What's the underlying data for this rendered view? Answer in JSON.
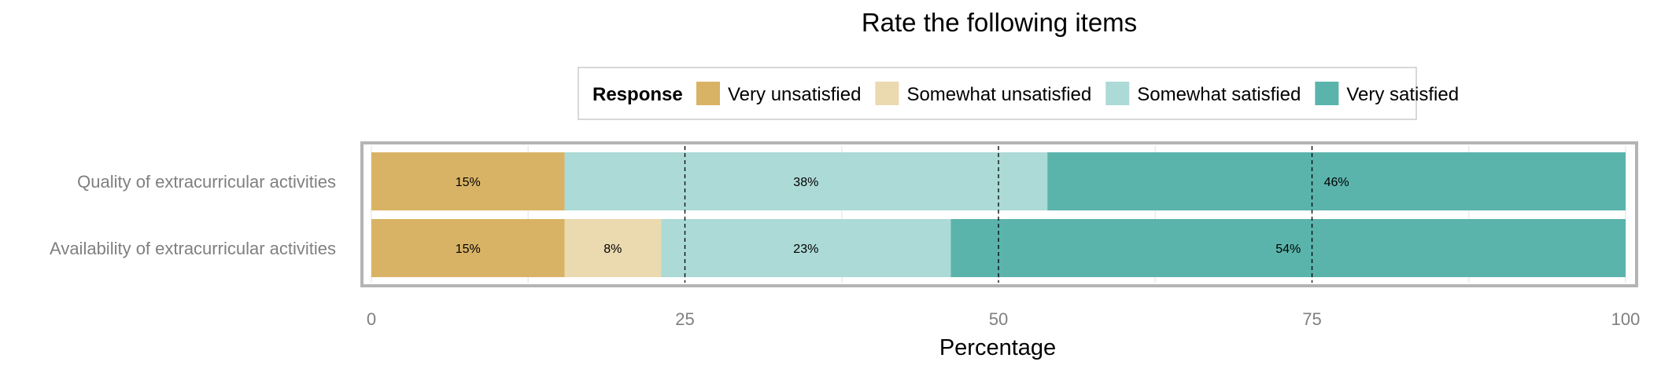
{
  "chart_data": {
    "type": "bar",
    "orientation": "horizontal",
    "stacked": true,
    "title": "Rate the following items",
    "xlabel": "Percentage",
    "ylabel": "",
    "xlim": [
      0,
      100
    ],
    "x_ticks": [
      0,
      25,
      50,
      75,
      100
    ],
    "reference_lines": [
      25,
      50,
      75
    ],
    "grid": true,
    "legend": {
      "title": "Response",
      "position": "top"
    },
    "categories": [
      "Quality of extracurricular activities",
      "Availability of extracurricular activities"
    ],
    "series": [
      {
        "name": "Very unsatisfied",
        "color": "#d9b365",
        "values": [
          15.4,
          15.4
        ],
        "labels": [
          "15%",
          "15%"
        ]
      },
      {
        "name": "Somewhat unsatisfied",
        "color": "#ebd9b0",
        "values": [
          0,
          7.7
        ],
        "labels": [
          "",
          "8%"
        ]
      },
      {
        "name": "Somewhat satisfied",
        "color": "#acdad6",
        "values": [
          38.5,
          23.1
        ],
        "labels": [
          "38%",
          "23%"
        ]
      },
      {
        "name": "Very satisfied",
        "color": "#5ab4ac",
        "values": [
          46.1,
          53.8
        ],
        "labels": [
          "46%",
          "54%"
        ]
      }
    ]
  }
}
